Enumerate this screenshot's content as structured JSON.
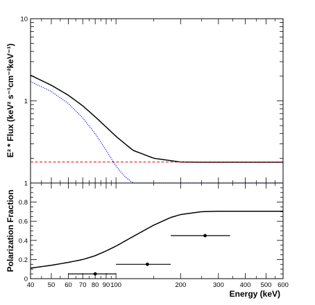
{
  "chart_data": [
    {
      "type": "line",
      "panel": "top",
      "ylabel": "E² * Flux (keV² s⁻¹cm⁻²keV⁻¹)",
      "xscale": "log",
      "yscale": "log",
      "xlim": [
        40,
        600
      ],
      "ylim": [
        0.1,
        10
      ],
      "y_tick_labels": [
        "1",
        "10"
      ],
      "series": [
        {
          "style": "solid",
          "color": "#000000",
          "x": [
            40,
            50,
            60,
            70,
            80,
            90,
            100,
            120,
            150,
            200,
            250,
            300,
            400,
            500,
            600
          ],
          "y": [
            2.05,
            1.55,
            1.17,
            0.87,
            0.64,
            0.48,
            0.37,
            0.25,
            0.2,
            0.18,
            0.179,
            0.179,
            0.179,
            0.179,
            0.179
          ]
        },
        {
          "style": "dotted",
          "color": "#1a1aff",
          "x": [
            40,
            50,
            60,
            70,
            80,
            90,
            100,
            110,
            120,
            125,
            600
          ],
          "y": [
            1.72,
            1.3,
            0.93,
            0.62,
            0.4,
            0.25,
            0.16,
            0.12,
            0.1,
            0.1,
            0.1
          ]
        },
        {
          "style": "dashed",
          "color": "#e00000",
          "x": [
            40,
            600
          ],
          "y": [
            0.18,
            0.18
          ]
        }
      ]
    },
    {
      "type": "line",
      "panel": "bottom",
      "xlabel": "Energy (keV)",
      "ylabel": "Polarization Fraction",
      "xscale": "log",
      "xlim": [
        40,
        600
      ],
      "ylim": [
        0,
        1
      ],
      "x_tick_labels": [
        "40",
        "50",
        "60",
        "70",
        "80",
        "90",
        "100",
        "200",
        "300",
        "400",
        "500",
        "600"
      ],
      "y_tick_labels": [
        "0",
        "0.2",
        "0.4",
        "0.6",
        "0.8",
        "1"
      ],
      "series": [
        {
          "style": "solid",
          "color": "#000000",
          "x": [
            40,
            50,
            60,
            70,
            80,
            90,
            100,
            120,
            150,
            180,
            200,
            250,
            300,
            400,
            500,
            600
          ],
          "y": [
            0.11,
            0.14,
            0.17,
            0.2,
            0.24,
            0.29,
            0.34,
            0.44,
            0.56,
            0.64,
            0.67,
            0.7,
            0.705,
            0.705,
            0.705,
            0.705
          ]
        }
      ],
      "points": [
        {
          "x": 80,
          "y": 0.05,
          "x_low": 60,
          "x_high": 100
        },
        {
          "x": 140,
          "y": 0.15,
          "x_low": 100,
          "x_high": 180
        },
        {
          "x": 260,
          "y": 0.45,
          "x_low": 180,
          "x_high": 340
        }
      ]
    }
  ]
}
